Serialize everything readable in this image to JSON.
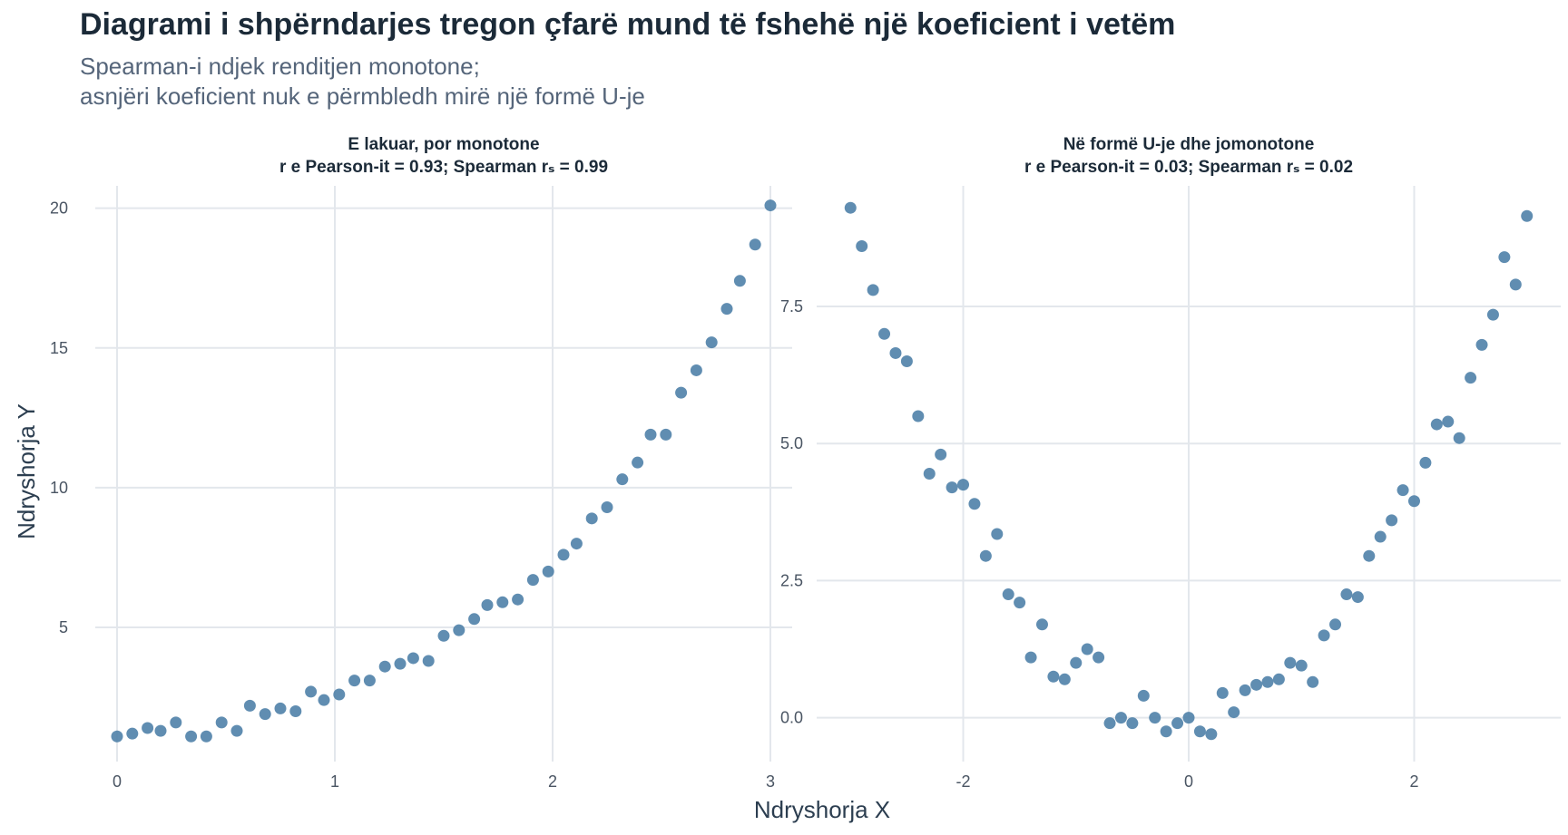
{
  "title": "Diagrami i shpërndarjes tregon çfarë mund të fshehë një koeficient i vetëm",
  "subtitle_lines": [
    "Spearman-i ndjek renditjen monotone;",
    "asnjëri koeficient nuk e përmbledh mirë një formë U-je"
  ],
  "xlabel": "Ndryshorja X",
  "ylabel": "Ndryshorja Y",
  "colors": {
    "points": "#4f81a8",
    "grid": "#e3e7ec",
    "title": "#1b2a38",
    "subtitle": "#55657a"
  },
  "chart_data": [
    {
      "type": "scatter",
      "panel_title_lines": [
        "E lakuar, por monotone",
        "r e Pearson-it = 0.93; Spearman rₛ = 0.99"
      ],
      "xlabel": "Ndryshorja X",
      "ylabel": "Ndryshorja Y",
      "xlim": [
        -0.1,
        3.1
      ],
      "ylim": [
        0.2,
        20.8
      ],
      "x_ticks": [
        0,
        1,
        2,
        3
      ],
      "x_tick_labels": [
        "0",
        "1",
        "2",
        "3"
      ],
      "y_ticks": [
        5,
        10,
        15,
        20
      ],
      "y_tick_labels": [
        "5",
        "10",
        "15",
        "20"
      ],
      "grid": true,
      "x": [
        0.0,
        0.07,
        0.14,
        0.2,
        0.27,
        0.34,
        0.41,
        0.48,
        0.55,
        0.61,
        0.68,
        0.75,
        0.82,
        0.89,
        0.95,
        1.02,
        1.09,
        1.16,
        1.23,
        1.3,
        1.36,
        1.43,
        1.5,
        1.57,
        1.64,
        1.7,
        1.77,
        1.84,
        1.91,
        1.98,
        2.05,
        2.11,
        2.18,
        2.25,
        2.32,
        2.39,
        2.45,
        2.52,
        2.59,
        2.66,
        2.73,
        2.8,
        2.86,
        2.93,
        3.0
      ],
      "y": [
        1.1,
        1.2,
        1.4,
        1.3,
        1.6,
        1.1,
        1.1,
        1.6,
        1.3,
        2.2,
        1.9,
        2.1,
        2.0,
        2.7,
        2.4,
        2.6,
        3.1,
        3.1,
        3.6,
        3.7,
        3.9,
        3.8,
        4.7,
        4.9,
        5.3,
        5.8,
        5.9,
        6.0,
        6.7,
        7.0,
        7.6,
        8.0,
        8.9,
        9.3,
        10.3,
        10.9,
        11.9,
        11.9,
        13.4,
        14.2,
        15.2,
        16.4,
        17.4,
        18.7,
        20.1
      ]
    },
    {
      "type": "scatter",
      "panel_title_lines": [
        "Në formë U-je dhe jomonotone",
        "r e Pearson-it = 0.03; Spearman rₛ = 0.02"
      ],
      "xlabel": "Ndryshorja X",
      "ylabel": "",
      "xlim": [
        -3.3,
        3.3
      ],
      "ylim": [
        -0.8,
        9.7
      ],
      "x_ticks": [
        -2,
        0,
        2
      ],
      "x_tick_labels": [
        "-2",
        "0",
        "2"
      ],
      "y_ticks": [
        0,
        2.5,
        5,
        7.5
      ],
      "y_tick_labels": [
        "0.0",
        "2.5",
        "5.0",
        "7.5"
      ],
      "grid": true,
      "x": [
        -3.0,
        -2.9,
        -2.8,
        -2.7,
        -2.6,
        -2.5,
        -2.4,
        -2.3,
        -2.2,
        -2.1,
        -2.0,
        -1.9,
        -1.8,
        -1.7,
        -1.6,
        -1.5,
        -1.4,
        -1.3,
        -1.2,
        -1.1,
        -1.0,
        -0.9,
        -0.8,
        -0.7,
        -0.6,
        -0.5,
        -0.4,
        -0.3,
        -0.2,
        -0.1,
        0.0,
        0.1,
        0.2,
        0.3,
        0.4,
        0.5,
        0.6,
        0.7,
        0.8,
        0.9,
        1.0,
        1.1,
        1.2,
        1.3,
        1.4,
        1.5,
        1.6,
        1.7,
        1.8,
        1.9,
        2.0,
        2.1,
        2.2,
        2.3,
        2.4,
        2.5,
        2.6,
        2.7,
        2.8,
        2.9,
        3.0
      ],
      "y": [
        9.3,
        8.6,
        7.8,
        7.0,
        6.65,
        6.5,
        5.5,
        4.45,
        4.8,
        4.2,
        4.25,
        3.9,
        2.95,
        3.35,
        2.25,
        2.1,
        1.1,
        1.7,
        0.75,
        0.7,
        1.0,
        1.25,
        1.1,
        -0.1,
        0.0,
        -0.1,
        0.4,
        0.0,
        -0.25,
        -0.1,
        0.0,
        -0.25,
        -0.3,
        0.45,
        0.1,
        0.5,
        0.6,
        0.65,
        0.7,
        1.0,
        0.95,
        0.65,
        1.5,
        1.7,
        2.25,
        2.2,
        2.95,
        3.3,
        3.6,
        4.15,
        3.95,
        4.65,
        5.35,
        5.4,
        5.1,
        6.2,
        6.8,
        7.35,
        8.4,
        7.9,
        9.15
      ]
    }
  ]
}
